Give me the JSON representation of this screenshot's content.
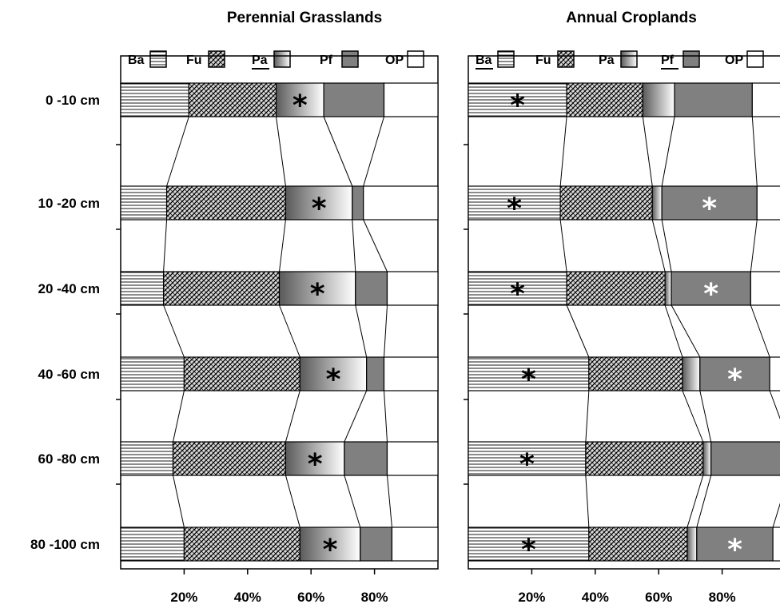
{
  "chart_data": [
    {
      "type": "bar",
      "subtype": "stacked-horizontal-100",
      "title": "Perennial Grasslands",
      "categories": [
        "0 -10 cm",
        "10 -20 cm",
        "20 -40 cm",
        "40 -60 cm",
        "60 -80 cm",
        "80 -100 cm"
      ],
      "legend": [
        {
          "code": "Ba",
          "underlined": false
        },
        {
          "code": "Fu",
          "underlined": false
        },
        {
          "code": "Pa",
          "underlined": true
        },
        {
          "code": "Pf",
          "underlined": false
        },
        {
          "code": "OP",
          "underlined": false
        }
      ],
      "series": [
        {
          "name": "Ba",
          "values": [
            21.5,
            14.5,
            13.5,
            20,
            16.5,
            20
          ]
        },
        {
          "name": "Fu",
          "values": [
            27.5,
            37.5,
            36.5,
            36.5,
            35.5,
            36.5
          ]
        },
        {
          "name": "Pa",
          "values": [
            15,
            21,
            24,
            21,
            18.5,
            19
          ]
        },
        {
          "name": "Pf",
          "values": [
            19,
            3.5,
            10,
            5.5,
            13.5,
            10
          ]
        },
        {
          "name": "OP",
          "values": [
            17,
            23.5,
            16,
            17,
            16,
            14.5
          ]
        }
      ],
      "significant": [
        {
          "category": "0 -10 cm",
          "series": "Pa",
          "marker": "*",
          "color": "#000000"
        },
        {
          "category": "10 -20 cm",
          "series": "Pa",
          "marker": "*",
          "color": "#000000"
        },
        {
          "category": "20 -40 cm",
          "series": "Pa",
          "marker": "*",
          "color": "#000000"
        },
        {
          "category": "40 -60 cm",
          "series": "Pa",
          "marker": "*",
          "color": "#000000"
        },
        {
          "category": "60 -80 cm",
          "series": "Pa",
          "marker": "*",
          "color": "#000000"
        },
        {
          "category": "80 -100 cm",
          "series": "Pa",
          "marker": "*",
          "color": "#000000"
        }
      ],
      "xlim": [
        0,
        100
      ],
      "xticks": [
        "20%",
        "40%",
        "60%",
        "80%"
      ],
      "connectors": true
    },
    {
      "type": "bar",
      "subtype": "stacked-horizontal-100",
      "title": "Annual Croplands",
      "categories": [
        "0 -10 cm",
        "10 -20 cm",
        "20 -40 cm",
        "40 -60 cm",
        "60 -80 cm",
        "80 -100 cm"
      ],
      "legend": [
        {
          "code": "Ba",
          "underlined": true
        },
        {
          "code": "Fu",
          "underlined": false
        },
        {
          "code": "Pa",
          "underlined": false
        },
        {
          "code": "Pf",
          "underlined": true
        },
        {
          "code": "OP",
          "underlined": false
        }
      ],
      "series": [
        {
          "name": "Ba",
          "values": [
            31,
            29,
            31,
            38,
            37,
            38
          ]
        },
        {
          "name": "Fu",
          "values": [
            24,
            29,
            31,
            29.5,
            37,
            31
          ]
        },
        {
          "name": "Pa",
          "values": [
            10,
            3,
            2,
            5.5,
            2.5,
            3
          ]
        },
        {
          "name": "Pf",
          "values": [
            24.5,
            30,
            25,
            22,
            24.5,
            24
          ]
        },
        {
          "name": "OP",
          "values": [
            10.5,
            9,
            11,
            5,
            2,
            4
          ]
        }
      ],
      "significant": [
        {
          "category": "0 -10 cm",
          "series": "Ba",
          "marker": "*",
          "color": "#000000"
        },
        {
          "category": "10 -20 cm",
          "series": "Ba",
          "marker": "*",
          "color": "#000000"
        },
        {
          "category": "10 -20 cm",
          "series": "Pf",
          "marker": "*",
          "color": "#ffffff"
        },
        {
          "category": "20 -40 cm",
          "series": "Ba",
          "marker": "*",
          "color": "#000000"
        },
        {
          "category": "20 -40 cm",
          "series": "Pf",
          "marker": "*",
          "color": "#ffffff"
        },
        {
          "category": "40 -60 cm",
          "series": "Ba",
          "marker": "*",
          "color": "#000000"
        },
        {
          "category": "40 -60 cm",
          "series": "Pf",
          "marker": "*",
          "color": "#ffffff"
        },
        {
          "category": "60 -80 cm",
          "series": "Ba",
          "marker": "*",
          "color": "#000000"
        },
        {
          "category": "80 -100 cm",
          "series": "Ba",
          "marker": "*",
          "color": "#000000"
        },
        {
          "category": "80 -100 cm",
          "series": "Pf",
          "marker": "*",
          "color": "#ffffff"
        }
      ],
      "xlim": [
        0,
        100
      ],
      "xticks": [
        "20%",
        "40%",
        "60%",
        "80%"
      ],
      "connectors": true
    }
  ]
}
